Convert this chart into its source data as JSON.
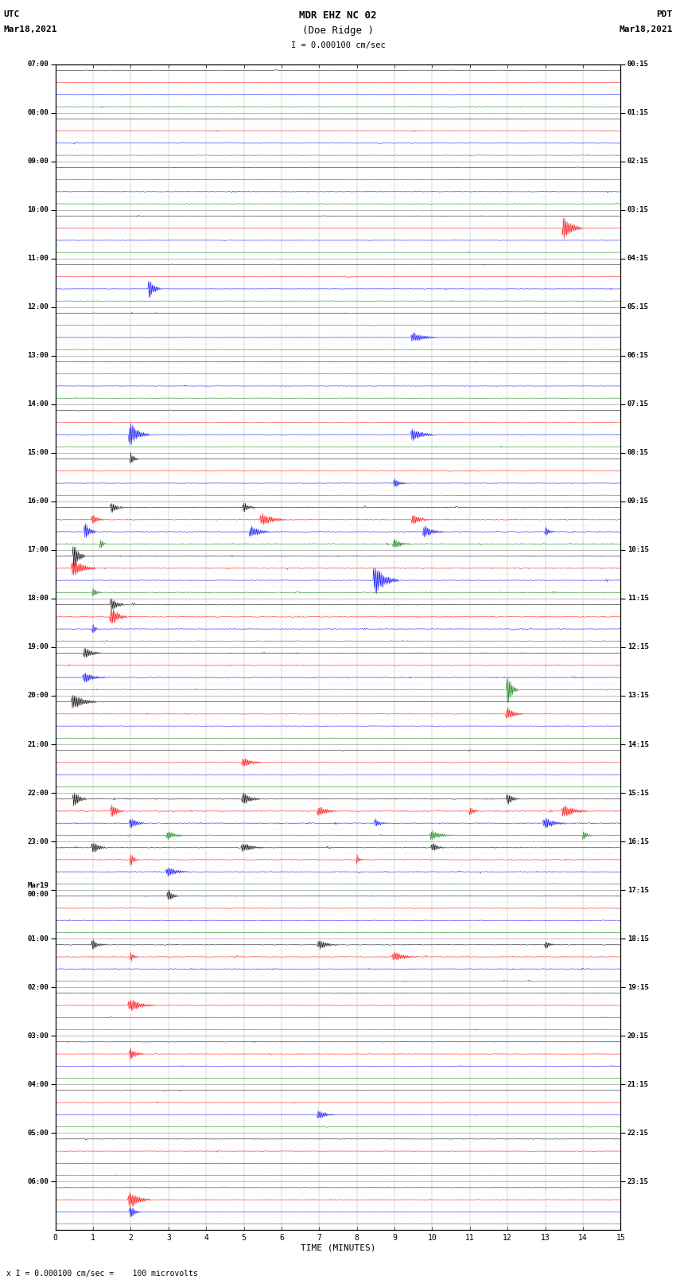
{
  "title_line1": "MDR EHZ NC 02",
  "title_line2": "(Doe Ridge )",
  "scale_label": "I = 0.000100 cm/sec",
  "xlabel": "TIME (MINUTES)",
  "footer_label": "x I = 0.000100 cm/sec =    100 microvolts",
  "bg_color": "#ffffff",
  "trace_colors": [
    "black",
    "red",
    "blue",
    "green"
  ],
  "left_times": [
    "07:00",
    "08:00",
    "09:00",
    "10:00",
    "11:00",
    "12:00",
    "13:00",
    "14:00",
    "15:00",
    "16:00",
    "17:00",
    "18:00",
    "19:00",
    "20:00",
    "21:00",
    "22:00",
    "23:00",
    "Mar19\n00:00",
    "01:00",
    "02:00",
    "03:00",
    "04:00",
    "05:00",
    "06:00"
  ],
  "right_times": [
    "00:15",
    "01:15",
    "02:15",
    "03:15",
    "04:15",
    "05:15",
    "06:15",
    "07:15",
    "08:15",
    "09:15",
    "10:15",
    "11:15",
    "12:15",
    "13:15",
    "14:15",
    "15:15",
    "16:15",
    "17:15",
    "18:15",
    "19:15",
    "20:15",
    "21:15",
    "22:15",
    "23:15"
  ],
  "num_rows": 96,
  "rows_per_hour": 4,
  "xmin": 0,
  "xmax": 15,
  "noise_seed": 42,
  "fig_width": 8.5,
  "fig_height": 16.13,
  "dpi": 100
}
